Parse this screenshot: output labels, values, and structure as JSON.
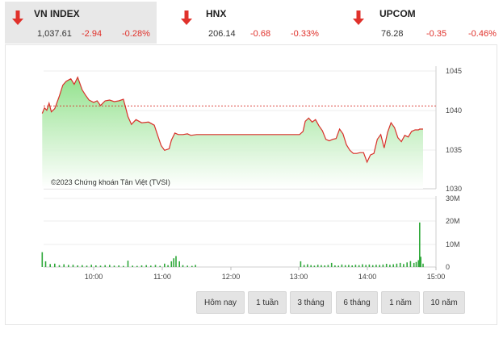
{
  "indices": [
    {
      "name": "VN INDEX",
      "value": "1,037.61",
      "change": "-2.94",
      "percent": "-0.28%",
      "icon": "down-arrow-icon"
    },
    {
      "name": "HNX",
      "value": "206.14",
      "change": "-0.68",
      "percent": "-0.33%",
      "icon": "down-arrow-icon"
    },
    {
      "name": "UPCOM",
      "value": "76.28",
      "change": "-0.35",
      "percent": "-0.46%",
      "icon": "down-arrow-icon"
    }
  ],
  "colors": {
    "down": "#e0312b",
    "line": "#d9302a",
    "area": "#a6e6a0",
    "volume": "#2fa83a",
    "active_bg": "#e8e8e8"
  },
  "chart": {
    "copyright": "©2023 Chứng khoán Tân Việt (TVSI)",
    "price_ticks": [
      "1045",
      "1040",
      "1035",
      "1030"
    ],
    "volume_ticks": [
      "30M",
      "20M",
      "10M",
      "0"
    ],
    "time_ticks": [
      "10:00",
      "11:00",
      "12:00",
      "13:00",
      "14:00",
      "15:00"
    ]
  },
  "ranges": [
    "Hôm nay",
    "1 tuần",
    "3 tháng",
    "6 tháng",
    "1 năm",
    "10 năm"
  ],
  "chart_data": {
    "type": "line",
    "title": "",
    "reference": 1040.55,
    "ylim": [
      1030,
      1045
    ],
    "volume_ylim": [
      0,
      30
    ],
    "x_range": [
      "09:15",
      "15:00"
    ],
    "price": [
      [
        "09:15",
        1039.6
      ],
      [
        "09:17",
        1040.3
      ],
      [
        "09:19",
        1040.0
      ],
      [
        "09:21",
        1040.9
      ],
      [
        "09:23",
        1039.8
      ],
      [
        "09:26",
        1040.2
      ],
      [
        "09:30",
        1041.8
      ],
      [
        "09:33",
        1043.2
      ],
      [
        "09:36",
        1043.7
      ],
      [
        "09:40",
        1044.0
      ],
      [
        "09:43",
        1043.3
      ],
      [
        "09:46",
        1044.2
      ],
      [
        "09:50",
        1042.6
      ],
      [
        "09:53",
        1041.9
      ],
      [
        "09:56",
        1041.3
      ],
      [
        "10:00",
        1041.0
      ],
      [
        "10:03",
        1041.2
      ],
      [
        "10:06",
        1040.6
      ],
      [
        "10:10",
        1041.2
      ],
      [
        "10:14",
        1041.3
      ],
      [
        "10:18",
        1041.1
      ],
      [
        "10:22",
        1041.2
      ],
      [
        "10:26",
        1041.4
      ],
      [
        "10:28",
        1040.3
      ],
      [
        "10:30",
        1039.2
      ],
      [
        "10:33",
        1038.2
      ],
      [
        "10:37",
        1038.8
      ],
      [
        "10:42",
        1038.4
      ],
      [
        "10:48",
        1038.5
      ],
      [
        "10:53",
        1038.1
      ],
      [
        "10:56",
        1036.8
      ],
      [
        "10:59",
        1035.5
      ],
      [
        "11:02",
        1034.9
      ],
      [
        "11:06",
        1035.1
      ],
      [
        "11:08",
        1036.2
      ],
      [
        "11:11",
        1037.1
      ],
      [
        "11:14",
        1036.9
      ],
      [
        "11:18",
        1036.9
      ],
      [
        "11:22",
        1037.0
      ],
      [
        "11:25",
        1036.8
      ],
      [
        "11:30",
        1036.9
      ],
      [
        "13:00",
        1036.9
      ],
      [
        "13:03",
        1037.3
      ],
      [
        "13:05",
        1038.6
      ],
      [
        "13:08",
        1039.0
      ],
      [
        "13:11",
        1038.5
      ],
      [
        "13:14",
        1038.8
      ],
      [
        "13:17",
        1038.0
      ],
      [
        "13:20",
        1037.4
      ],
      [
        "13:23",
        1036.3
      ],
      [
        "13:26",
        1036.1
      ],
      [
        "13:29",
        1036.3
      ],
      [
        "13:32",
        1036.4
      ],
      [
        "13:35",
        1037.6
      ],
      [
        "13:38",
        1037.0
      ],
      [
        "13:41",
        1035.6
      ],
      [
        "13:44",
        1034.9
      ],
      [
        "13:47",
        1034.5
      ],
      [
        "13:50",
        1034.5
      ],
      [
        "13:53",
        1034.6
      ],
      [
        "13:56",
        1034.6
      ],
      [
        "13:59",
        1033.4
      ],
      [
        "14:02",
        1034.3
      ],
      [
        "14:05",
        1034.5
      ],
      [
        "14:08",
        1036.3
      ],
      [
        "14:11",
        1036.9
      ],
      [
        "14:14",
        1035.2
      ],
      [
        "14:17",
        1037.2
      ],
      [
        "14:20",
        1038.4
      ],
      [
        "14:23",
        1037.8
      ],
      [
        "14:26",
        1036.5
      ],
      [
        "14:29",
        1036.0
      ],
      [
        "14:32",
        1036.8
      ],
      [
        "14:35",
        1036.6
      ],
      [
        "14:38",
        1037.3
      ],
      [
        "14:41",
        1037.5
      ],
      [
        "14:44",
        1037.5
      ],
      [
        "14:45",
        1037.6
      ],
      [
        "14:47",
        1037.6
      ],
      [
        "14:48",
        1037.6
      ]
    ],
    "volume": [
      [
        "09:15",
        6.5
      ],
      [
        "09:18",
        2.5
      ],
      [
        "09:22",
        1.3
      ],
      [
        "09:26",
        1.5
      ],
      [
        "09:30",
        0.8
      ],
      [
        "09:34",
        1.2
      ],
      [
        "09:38",
        0.9
      ],
      [
        "09:42",
        1.0
      ],
      [
        "09:46",
        0.7
      ],
      [
        "09:50",
        0.8
      ],
      [
        "09:54",
        0.6
      ],
      [
        "09:58",
        1.0
      ],
      [
        "10:02",
        0.7
      ],
      [
        "10:06",
        0.6
      ],
      [
        "10:10",
        0.8
      ],
      [
        "10:14",
        0.9
      ],
      [
        "10:18",
        0.6
      ],
      [
        "10:22",
        0.7
      ],
      [
        "10:26",
        0.5
      ],
      [
        "10:30",
        2.8
      ],
      [
        "10:34",
        0.6
      ],
      [
        "10:38",
        0.5
      ],
      [
        "10:42",
        0.7
      ],
      [
        "10:46",
        0.8
      ],
      [
        "10:50",
        0.6
      ],
      [
        "10:54",
        0.9
      ],
      [
        "10:58",
        0.5
      ],
      [
        "11:02",
        1.5
      ],
      [
        "11:05",
        0.8
      ],
      [
        "11:08",
        2.5
      ],
      [
        "11:10",
        3.8
      ],
      [
        "11:12",
        4.8
      ],
      [
        "11:15",
        2.5
      ],
      [
        "11:18",
        0.8
      ],
      [
        "11:22",
        0.6
      ],
      [
        "11:26",
        0.5
      ],
      [
        "11:29",
        0.9
      ],
      [
        "13:01",
        2.5
      ],
      [
        "13:04",
        0.9
      ],
      [
        "13:07",
        1.2
      ],
      [
        "13:10",
        0.8
      ],
      [
        "13:13",
        0.6
      ],
      [
        "13:16",
        1.0
      ],
      [
        "13:19",
        0.8
      ],
      [
        "13:22",
        0.7
      ],
      [
        "13:25",
        0.9
      ],
      [
        "13:28",
        1.8
      ],
      [
        "13:31",
        0.7
      ],
      [
        "13:34",
        0.6
      ],
      [
        "13:37",
        1.1
      ],
      [
        "13:40",
        0.8
      ],
      [
        "13:43",
        0.9
      ],
      [
        "13:46",
        0.7
      ],
      [
        "13:49",
        1.0
      ],
      [
        "13:52",
        0.8
      ],
      [
        "13:55",
        1.2
      ],
      [
        "13:58",
        0.9
      ],
      [
        "14:01",
        1.1
      ],
      [
        "14:04",
        0.8
      ],
      [
        "14:07",
        1.0
      ],
      [
        "14:10",
        0.9
      ],
      [
        "14:13",
        1.1
      ],
      [
        "14:16",
        1.4
      ],
      [
        "14:19",
        1.0
      ],
      [
        "14:22",
        1.2
      ],
      [
        "14:25",
        1.5
      ],
      [
        "14:28",
        1.8
      ],
      [
        "14:31",
        1.3
      ],
      [
        "14:34",
        2.0
      ],
      [
        "14:37",
        2.6
      ],
      [
        "14:40",
        1.8
      ],
      [
        "14:42",
        2.2
      ],
      [
        "14:44",
        3.0
      ],
      [
        "14:45",
        19.5
      ],
      [
        "14:46",
        4.5
      ],
      [
        "14:48",
        1.5
      ]
    ]
  }
}
